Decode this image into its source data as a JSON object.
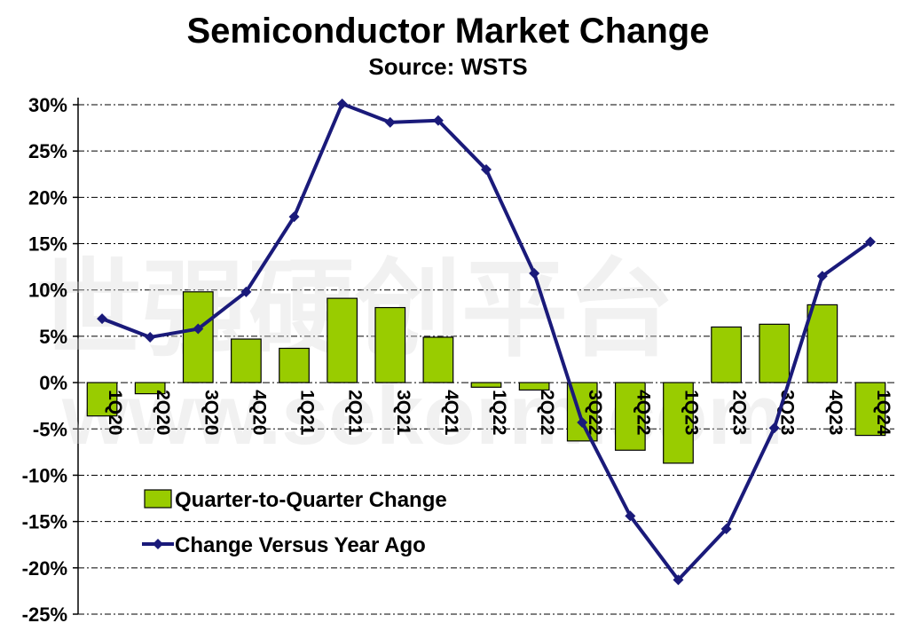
{
  "chart_data": {
    "type": "bar",
    "title": "Semiconductor Market Change",
    "subtitle": "Source: WSTS",
    "categories": [
      "1Q20",
      "2Q20",
      "3Q20",
      "4Q20",
      "1Q21",
      "2Q21",
      "3Q21",
      "4Q21",
      "1Q22",
      "2Q22",
      "3Q22",
      "4Q22",
      "1Q23",
      "2Q23",
      "3Q23",
      "4Q23",
      "1Q24"
    ],
    "series": [
      {
        "name": "Quarter-to-Quarter Change",
        "type": "bar",
        "color": "#99cc00",
        "values": [
          -3.6,
          -1.2,
          9.8,
          4.7,
          3.7,
          9.1,
          8.1,
          4.9,
          -0.5,
          -0.8,
          -6.3,
          -7.3,
          -8.7,
          6.0,
          6.3,
          8.4,
          -5.7
        ]
      },
      {
        "name": "Change Versus Year Ago",
        "type": "line",
        "color": "#1a1a7a",
        "values": [
          6.9,
          4.9,
          5.8,
          9.8,
          17.9,
          30.1,
          28.1,
          28.3,
          23.0,
          11.8,
          -4.3,
          -14.4,
          -21.3,
          -15.8,
          -4.9,
          11.5,
          15.2
        ]
      }
    ],
    "yticks": [
      "30%",
      "25%",
      "20%",
      "15%",
      "10%",
      "5%",
      "0%",
      "-5%",
      "-10%",
      "-15%",
      "-20%",
      "-25%"
    ],
    "ylim": [
      -25,
      30
    ],
    "grid": "horizontal dashed",
    "legend": "lower-left",
    "watermark": "世强硬创平台 www.sekorm.com"
  }
}
